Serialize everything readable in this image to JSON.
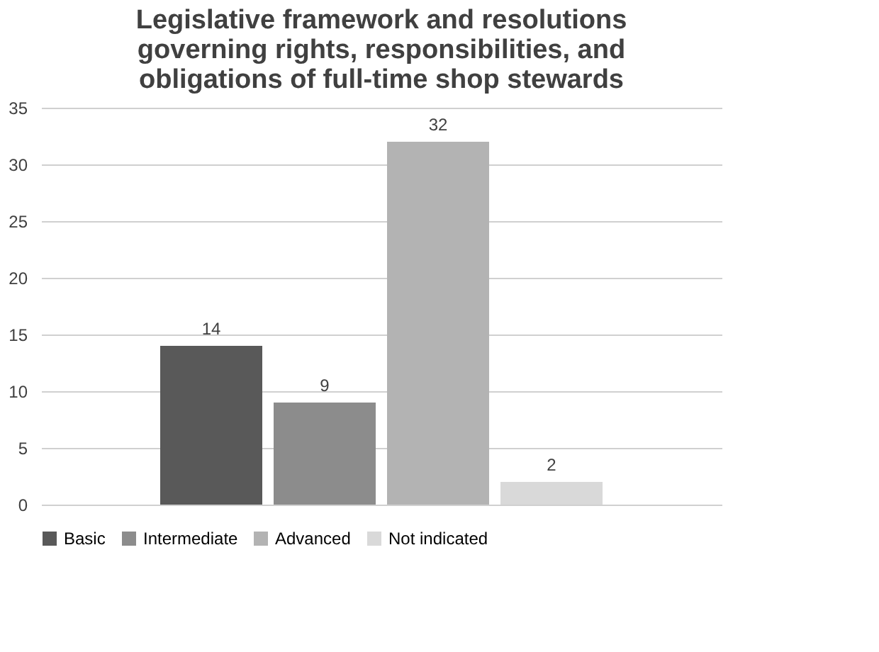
{
  "chart_data": {
    "type": "bar",
    "title": "Legislative framework and resolutions governing rights, responsibilities, and obligations of full-time shop stewards",
    "categories": [
      null
    ],
    "series": [
      {
        "name": "Basic",
        "color": "#595959",
        "values": [
          14
        ]
      },
      {
        "name": "Intermediate",
        "color": "#8c8c8c",
        "values": [
          9
        ]
      },
      {
        "name": "Advanced",
        "color": "#b3b3b3",
        "values": [
          32
        ]
      },
      {
        "name": "Not indicated",
        "color": "#d9d9d9",
        "values": [
          2
        ]
      }
    ],
    "ylim": [
      0,
      35
    ],
    "yticks": [
      0,
      5,
      10,
      15,
      20,
      25,
      30,
      35
    ],
    "grid": "y",
    "legend": "bottom",
    "data_labels": true,
    "tick_labels": "y"
  }
}
